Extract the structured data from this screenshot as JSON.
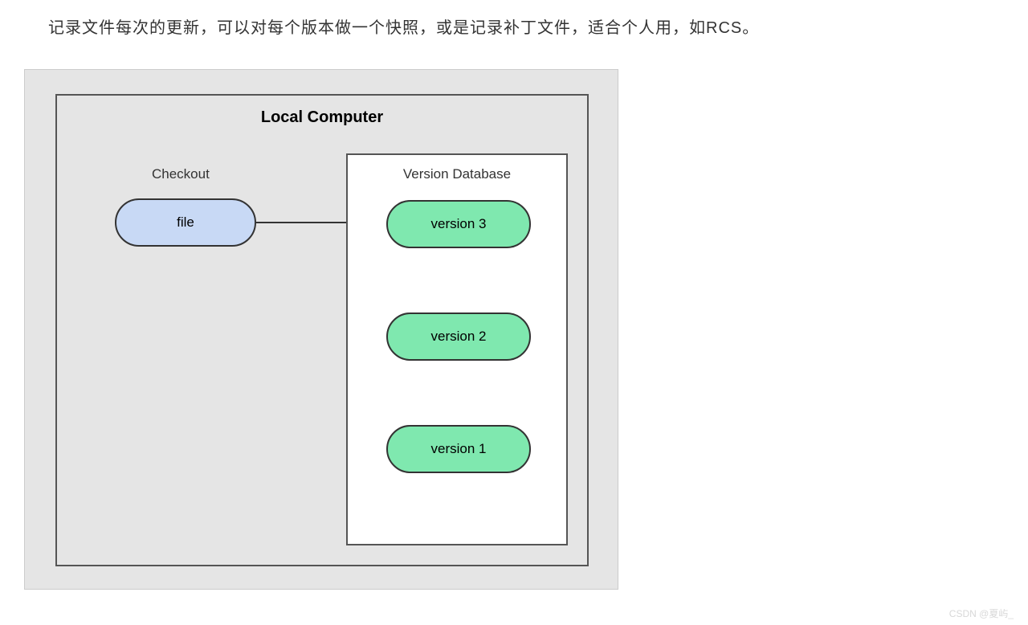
{
  "caption": "记录文件每次的更新，可以对每个版本做一个快照，或是记录补丁文件，适合个人用，如RCS。",
  "watermark": "CSDN @夏屿_",
  "diagram": {
    "type": "flowchart",
    "background_color": "#e5e5e5",
    "border_color": "#555555",
    "title": "Local Computer",
    "title_fontsize": 20,
    "checkout": {
      "label": "Checkout",
      "node": {
        "text": "file",
        "fill": "#c8d9f5",
        "stroke": "#333333",
        "border_radius": 30,
        "width": 176,
        "height": 60
      }
    },
    "database": {
      "label": "Version Database",
      "fill": "#ffffff",
      "stroke": "#555555",
      "versions": [
        {
          "text": "version 3",
          "fill": "#7fe8af",
          "stroke": "#333333"
        },
        {
          "text": "version 2",
          "fill": "#7fe8af",
          "stroke": "#333333"
        },
        {
          "text": "version 1",
          "fill": "#7fe8af",
          "stroke": "#333333"
        }
      ]
    },
    "edges": [
      {
        "from": "file",
        "to": "version 3",
        "stroke": "#333333"
      },
      {
        "from": "version 3",
        "to": "version 2",
        "stroke": "#333333"
      },
      {
        "from": "version 2",
        "to": "version 1",
        "stroke": "#333333"
      }
    ]
  }
}
